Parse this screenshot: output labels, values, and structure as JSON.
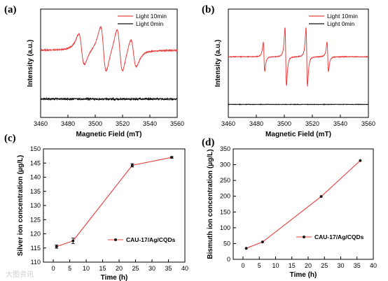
{
  "chart_data": [
    {
      "id": "a",
      "type": "line",
      "panel_label": "(a)",
      "xlabel": "Magnetic Field (mT)",
      "ylabel": "Intensity (a.u.)",
      "xlim": [
        3460,
        3560
      ],
      "xticks": [
        3460,
        3480,
        3500,
        3520,
        3540,
        3560
      ],
      "y_ticks_shown": false,
      "legend_position": "top-right",
      "series": [
        {
          "name": "Light 10min",
          "color": "#e8403f",
          "baseline": 0.62,
          "noise": 0.006,
          "signal": {
            "peaks": [
              {
                "center": 3490,
                "amp": 0.17,
                "width": 3.6
              },
              {
                "center": 3506,
                "amp": 0.25,
                "width": 3.6
              },
              {
                "center": 3518,
                "amp": 0.24,
                "width": 3.6
              },
              {
                "center": 3528,
                "amp": 0.16,
                "width": 3.6
              }
            ]
          }
        },
        {
          "name": "Light 0min",
          "color": "#111111",
          "baseline": 0.17,
          "noise": 0.008
        }
      ]
    },
    {
      "id": "b",
      "type": "line",
      "panel_label": "(b)",
      "xlabel": "Magnetic Field (mT)",
      "ylabel": "Intensity (a.u.)",
      "xlim": [
        3460,
        3560
      ],
      "xticks": [
        3460,
        3480,
        3500,
        3520,
        3540,
        3560
      ],
      "y_ticks_shown": false,
      "legend_position": "top-right",
      "series": [
        {
          "name": "Light 10min",
          "color": "#e8403f",
          "baseline": 0.56,
          "noise": 0.003,
          "signal": {
            "peaks": [
              {
                "center": 3485.5,
                "amp": 0.16,
                "width": 0.9
              },
              {
                "center": 3501,
                "amp": 0.32,
                "width": 0.9
              },
              {
                "center": 3516,
                "amp": 0.32,
                "width": 0.9
              },
              {
                "center": 3531,
                "amp": 0.16,
                "width": 0.9
              }
            ]
          }
        },
        {
          "name": "Light 0min",
          "color": "#111111",
          "baseline": 0.12,
          "noise": 0.002
        }
      ]
    },
    {
      "id": "c",
      "type": "line",
      "panel_label": "(c)",
      "xlabel": "Time (h)",
      "ylabel": "Silver ion concentration (μg/L)",
      "xlim": [
        -3,
        40
      ],
      "ylim": [
        110,
        150
      ],
      "xticks": [
        0,
        5,
        10,
        15,
        20,
        25,
        30,
        35,
        40
      ],
      "yticks": [
        110,
        115,
        120,
        125,
        130,
        135,
        140,
        145,
        150
      ],
      "legend_position": "bottom-right",
      "series": [
        {
          "name": "CAU-17/Ag/CQDs",
          "color": "#e8403f",
          "marker_color": "#1a1a1a",
          "x": [
            1,
            6,
            24,
            36
          ],
          "y": [
            115.5,
            117.5,
            144.2,
            147.0
          ],
          "yerr": [
            0.6,
            1.0,
            0.6,
            0.3
          ]
        }
      ]
    },
    {
      "id": "d",
      "type": "line",
      "panel_label": "(d)",
      "xlabel": "Time (h)",
      "ylabel": "Bismuth ion concentration (μg/L)",
      "xlim": [
        -3,
        40
      ],
      "ylim": [
        0,
        350
      ],
      "xticks": [
        0,
        5,
        10,
        15,
        20,
        25,
        30,
        35,
        40
      ],
      "yticks": [
        0,
        50,
        100,
        150,
        200,
        250,
        300,
        350
      ],
      "legend_position": "bottom-right",
      "series": [
        {
          "name": "CAU-17/Ag/CQDs",
          "color": "#e8403f",
          "marker_color": "#1a1a1a",
          "x": [
            1,
            6,
            24,
            36
          ],
          "y": [
            35,
            55,
            199,
            313
          ]
        }
      ]
    }
  ],
  "watermark": "大图资讯"
}
